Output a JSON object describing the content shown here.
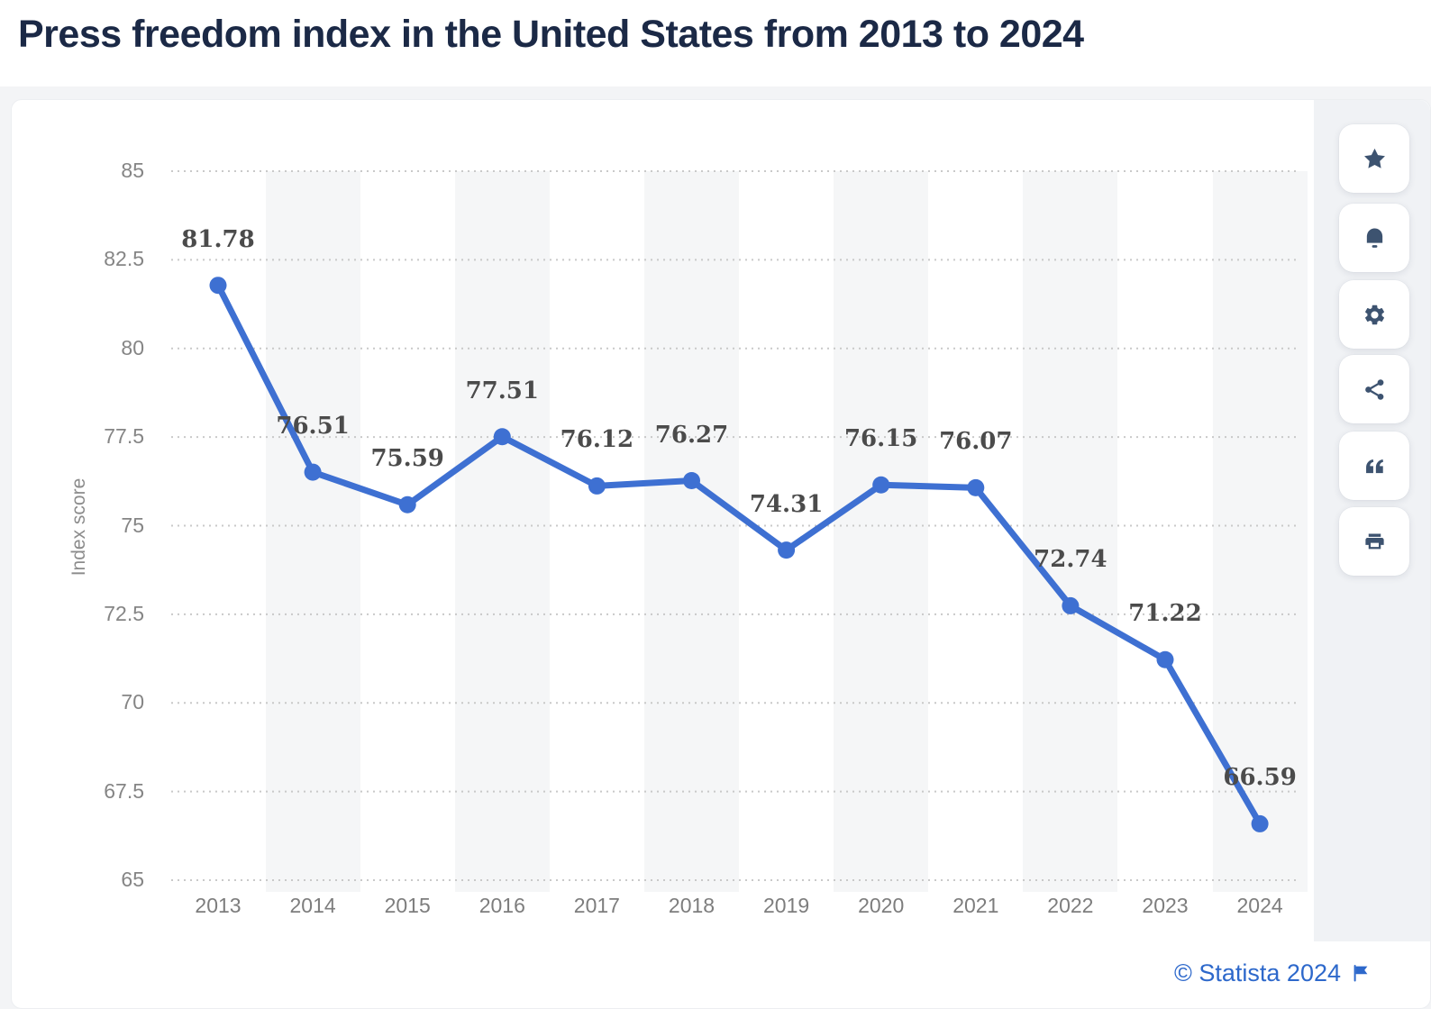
{
  "header": {
    "title": "Press freedom index in the United States from 2013 to 2024"
  },
  "chart_data": {
    "type": "line",
    "title": "Press freedom index in the United States from 2013 to 2024",
    "categories": [
      "2013",
      "2014",
      "2015",
      "2016",
      "2017",
      "2018",
      "2019",
      "2020",
      "2021",
      "2022",
      "2023",
      "2024"
    ],
    "series": [
      {
        "name": "Index score",
        "values": [
          81.78,
          76.51,
          75.59,
          77.51,
          76.12,
          76.27,
          74.31,
          76.15,
          76.07,
          72.74,
          71.22,
          66.59
        ]
      }
    ],
    "xlabel": "",
    "ylabel": "Index score",
    "ylim": [
      65,
      85
    ],
    "yticks": [
      85,
      82.5,
      80,
      77.5,
      75,
      72.5,
      70,
      67.5,
      65
    ],
    "grid": "horizontal-dotted",
    "legend": "none",
    "value_labels": true,
    "line_color": "#3e70d2",
    "marker_color": "#3e70d2",
    "stripe_color": "#f5f6f7",
    "gridline_color": "#c9c9c9"
  },
  "toolbar": {
    "buttons": [
      {
        "name": "favorite",
        "icon": "star-icon"
      },
      {
        "name": "notifications",
        "icon": "bell-icon"
      },
      {
        "name": "settings",
        "icon": "gear-icon"
      },
      {
        "name": "share",
        "icon": "share-icon"
      },
      {
        "name": "cite",
        "icon": "quote-icon"
      },
      {
        "name": "print",
        "icon": "printer-icon"
      }
    ]
  },
  "footer": {
    "copyright": "© Statista 2024",
    "flag_icon": "flag-icon",
    "link_color": "#2d68cb"
  }
}
